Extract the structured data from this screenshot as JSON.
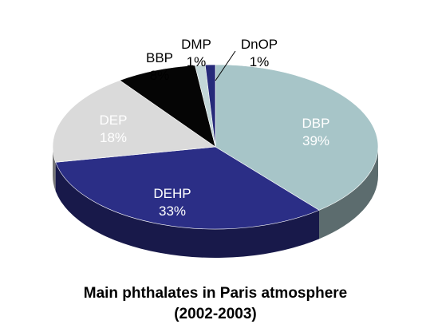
{
  "chart_data": {
    "type": "pie",
    "style": "3d",
    "title": "Main phthalates in Paris atmosphere",
    "subtitle": "(2002-2003)",
    "slices": [
      {
        "name": "DBP",
        "value": 39,
        "label": "39%",
        "color": "#a7c5c8"
      },
      {
        "name": "DEHP",
        "value": 33,
        "label": "33%",
        "color": "#2b2e86"
      },
      {
        "name": "DEP",
        "value": 18,
        "label": "18%",
        "color": "#dadada"
      },
      {
        "name": "BBP",
        "value": 8,
        "label": "8%",
        "color": "#050505"
      },
      {
        "name": "DMP",
        "value": 1,
        "label": "1%",
        "color": "#c2d6d8"
      },
      {
        "name": "DnOP",
        "value": 1,
        "label": "1%",
        "color": "#262a7a"
      }
    ]
  }
}
